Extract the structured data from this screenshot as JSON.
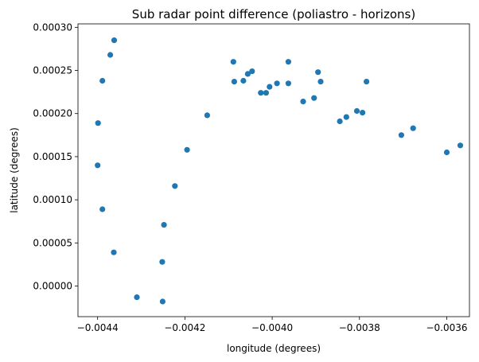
{
  "chart_data": {
    "type": "scatter",
    "title": "Sub radar point difference (poliastro - horizons)",
    "xlabel": "longitude (degrees)",
    "ylabel": "latitude (degrees)",
    "xlim": [
      -0.004445,
      -0.003548
    ],
    "ylim": [
      -3.55e-05,
      0.000304
    ],
    "xticks": [
      {
        "value": -0.0044,
        "label": "−0.0044"
      },
      {
        "value": -0.0042,
        "label": "−0.0042"
      },
      {
        "value": -0.004,
        "label": "−0.0040"
      },
      {
        "value": -0.0038,
        "label": "−0.0038"
      },
      {
        "value": -0.0036,
        "label": "−0.0036"
      }
    ],
    "yticks": [
      {
        "value": 0.0,
        "label": "0.00000"
      },
      {
        "value": 5e-05,
        "label": "0.00005"
      },
      {
        "value": 0.0001,
        "label": "0.00010"
      },
      {
        "value": 0.00015,
        "label": "0.00015"
      },
      {
        "value": 0.0002,
        "label": "0.00020"
      },
      {
        "value": 0.00025,
        "label": "0.00025"
      },
      {
        "value": 0.0003,
        "label": "0.00030"
      }
    ],
    "grid": false,
    "legend": false,
    "color": "#1f77b4",
    "series": [
      {
        "x": [
          -0.004362,
          -0.004371,
          -0.004389,
          -0.004399,
          -0.0044,
          -0.004389,
          -0.004363,
          -0.00431,
          -0.004251,
          -0.004252,
          -0.004248,
          -0.004223,
          -0.004195,
          -0.004149,
          -0.004089,
          -0.004087,
          -0.004066,
          -0.004056,
          -0.004046,
          -0.004014,
          -0.004026,
          -0.004006,
          -0.003989,
          -0.003963,
          -0.003963,
          -0.003929,
          -0.003904,
          -0.003895,
          -0.003889,
          -0.003845,
          -0.00383,
          -0.003806,
          -0.003793,
          -0.003784,
          -0.003704,
          -0.003677,
          -0.0036,
          -0.003569
        ],
        "y": [
          0.000285,
          0.000268,
          0.000238,
          0.000189,
          0.00014,
          8.9e-05,
          3.9e-05,
          -1.3e-05,
          -1.8e-05,
          2.8e-05,
          7.1e-05,
          0.000116,
          0.000158,
          0.000198,
          0.00026,
          0.000237,
          0.000238,
          0.000246,
          0.000249,
          0.000224,
          0.000224,
          0.000231,
          0.000235,
          0.00026,
          0.000235,
          0.000214,
          0.000218,
          0.000248,
          0.000237,
          0.000191,
          0.000196,
          0.000203,
          0.000201,
          0.000237,
          0.000175,
          0.000183,
          0.000155,
          0.000163
        ]
      }
    ]
  }
}
